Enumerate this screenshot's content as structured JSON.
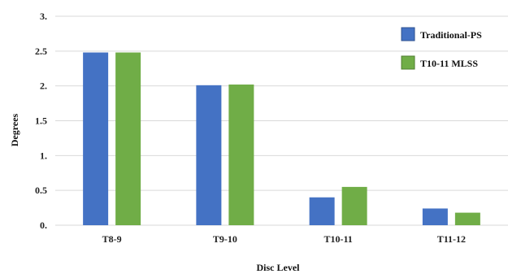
{
  "chart_data": {
    "type": "bar",
    "categories": [
      "T8-9",
      "T9-10",
      "T10-11",
      "T11-12"
    ],
    "series": [
      {
        "name": "Traditional-PS",
        "values": [
          2.48,
          2.01,
          0.4,
          0.24
        ],
        "color": "#4472c4"
      },
      {
        "name": "T10-11 MLSS",
        "values": [
          2.48,
          2.02,
          0.55,
          0.18
        ],
        "color": "#70ad47"
      }
    ],
    "xlabel": "Disc Level",
    "ylabel": "Degrees",
    "ylim": [
      0,
      3
    ],
    "yticks": [
      0,
      0.5,
      1,
      1.5,
      2,
      2.5,
      3
    ],
    "ytick_labels": [
      "0.",
      "0.5",
      "1.",
      "1.5",
      "2.",
      "2.5",
      "3."
    ],
    "grid": true,
    "legend_position": "top-right"
  }
}
